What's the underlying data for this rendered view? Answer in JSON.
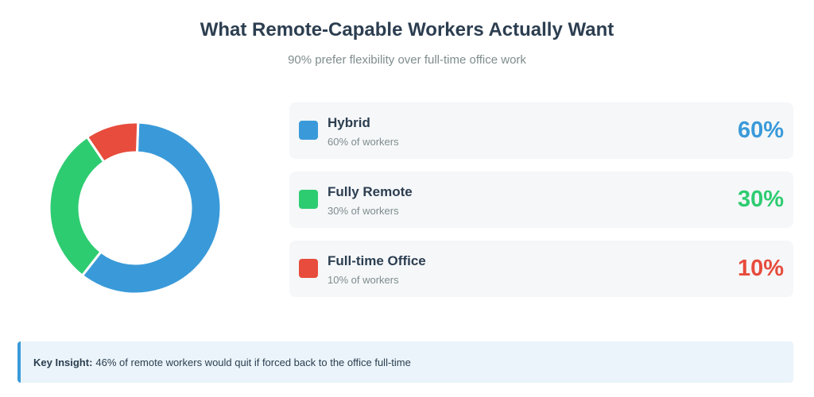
{
  "header": {
    "title": "What Remote-Capable Workers Actually Want",
    "subtitle": "90% prefer flexibility over full-time office work"
  },
  "chart_data": {
    "type": "pie",
    "style": "donut",
    "title": "What Remote-Capable Workers Actually Want",
    "subtitle": "90% prefer flexibility over full-time office work",
    "unit": "%",
    "categories": [
      "Hybrid",
      "Fully Remote",
      "Full-time Office"
    ],
    "values": [
      60,
      30,
      10
    ],
    "colors": [
      "#3a9ad9",
      "#2ecc71",
      "#e74c3c"
    ],
    "legend_position": "right"
  },
  "legend": {
    "items": [
      {
        "label": "Hybrid",
        "sub": "60% of workers",
        "value_text": "60%",
        "color": "#3a9ad9"
      },
      {
        "label": "Fully Remote",
        "sub": "30% of workers",
        "value_text": "30%",
        "color": "#2ecc71"
      },
      {
        "label": "Full-time Office",
        "sub": "10% of workers",
        "value_text": "10%",
        "color": "#e74c3c"
      }
    ]
  },
  "insight": {
    "key": "Key Insight:",
    "text": "46% of remote workers would quit if forced back to the office full-time",
    "accent": "#3a9ad9"
  }
}
